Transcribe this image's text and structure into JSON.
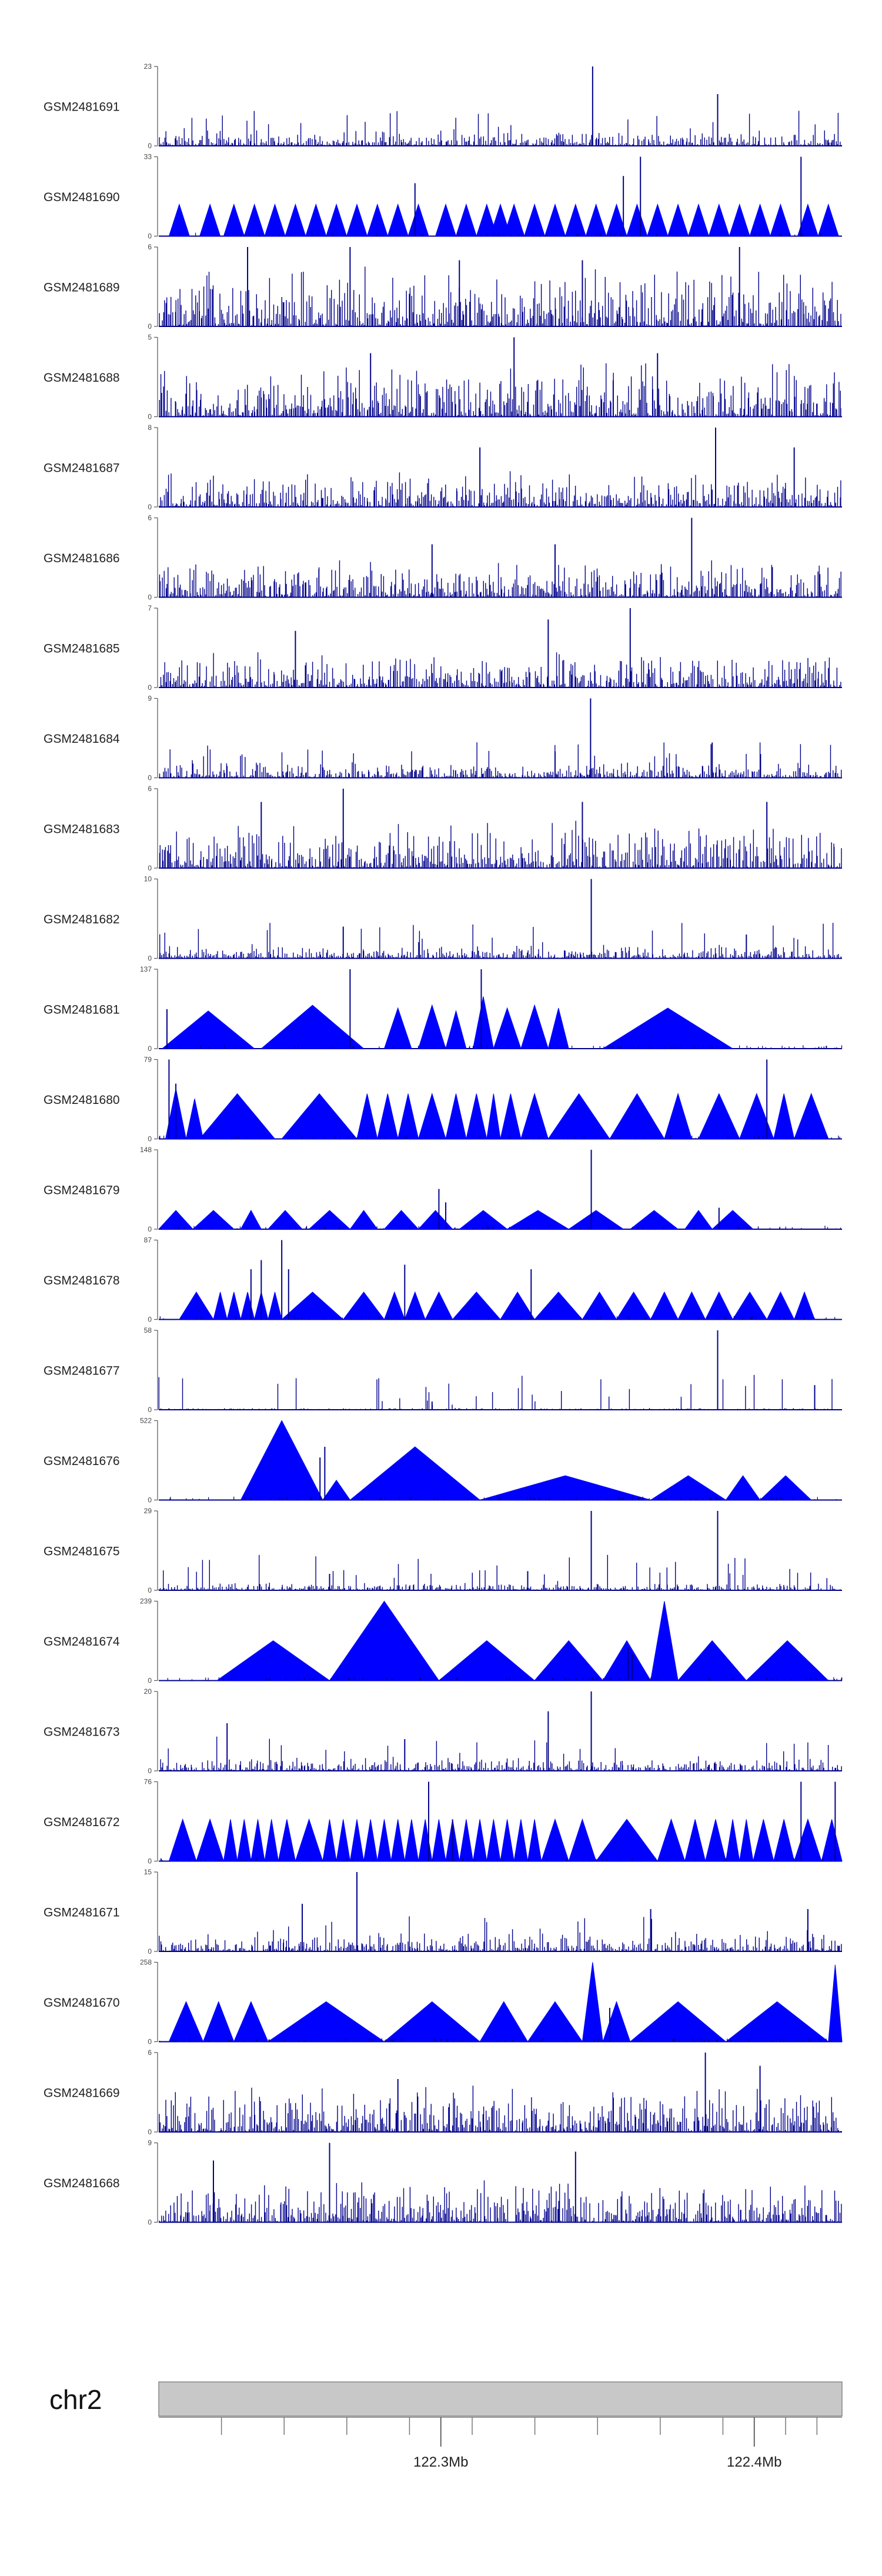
{
  "chart_data": {
    "type": "area",
    "series_color": "#0000FF",
    "outline_color": "#00008B",
    "tracks": [
      {
        "name": "GSM2481691",
        "ymax": 23,
        "style": "dense",
        "baseline": 2,
        "peaks": [
          [
            0.635,
            23
          ],
          [
            0.818,
            15
          ]
        ]
      },
      {
        "name": "GSM2481690",
        "ymax": 33,
        "style": "tri",
        "tri": [
          0.03,
          0.075,
          0.11,
          0.14,
          0.17,
          0.2,
          0.23,
          0.26,
          0.29,
          0.32,
          0.35,
          0.38,
          0.42,
          0.45,
          0.48,
          0.5,
          0.52,
          0.55,
          0.58,
          0.61,
          0.64,
          0.67,
          0.7,
          0.73,
          0.76,
          0.79,
          0.82,
          0.85,
          0.88,
          0.91,
          0.95,
          0.98
        ],
        "peaks": [
          [
            0.375,
            22
          ],
          [
            0.705,
            33
          ],
          [
            0.94,
            33
          ],
          [
            0.68,
            25
          ]
        ]
      },
      {
        "name": "GSM2481689",
        "ymax": 6,
        "style": "dense",
        "baseline": 2,
        "peaks": [
          [
            0.13,
            6
          ],
          [
            0.28,
            6
          ],
          [
            0.44,
            5
          ],
          [
            0.62,
            5
          ],
          [
            0.85,
            6
          ]
        ]
      },
      {
        "name": "GSM2481688",
        "ymax": 5,
        "style": "dense",
        "baseline": 1.5,
        "peaks": [
          [
            0.52,
            5
          ],
          [
            0.31,
            4
          ],
          [
            0.73,
            4
          ]
        ]
      },
      {
        "name": "GSM2481687",
        "ymax": 8,
        "style": "dense",
        "baseline": 1.5,
        "peaks": [
          [
            0.815,
            8
          ],
          [
            0.47,
            6
          ],
          [
            0.93,
            6
          ]
        ]
      },
      {
        "name": "GSM2481686",
        "ymax": 6,
        "style": "dense",
        "baseline": 1.2,
        "peaks": [
          [
            0.78,
            6
          ],
          [
            0.4,
            4
          ],
          [
            0.58,
            4
          ]
        ]
      },
      {
        "name": "GSM2481685",
        "ymax": 7,
        "style": "dense",
        "baseline": 1.3,
        "peaks": [
          [
            0.69,
            7
          ],
          [
            0.57,
            6
          ],
          [
            0.2,
            5
          ]
        ]
      },
      {
        "name": "GSM2481684",
        "ymax": 9,
        "style": "dense",
        "baseline": 0.8,
        "peaks": [
          [
            0.632,
            9
          ],
          [
            0.81,
            4
          ],
          [
            0.58,
            3
          ]
        ]
      },
      {
        "name": "GSM2481683",
        "ymax": 6,
        "style": "dense",
        "baseline": 1.5,
        "peaks": [
          [
            0.27,
            6
          ],
          [
            0.62,
            5
          ],
          [
            0.15,
            5
          ],
          [
            0.89,
            5
          ]
        ]
      },
      {
        "name": "GSM2481682",
        "ymax": 10,
        "style": "dense",
        "baseline": 0.7,
        "peaks": [
          [
            0.633,
            10
          ],
          [
            0.27,
            4
          ],
          [
            0.86,
            3
          ]
        ]
      },
      {
        "name": "GSM2481681",
        "ymax": 137,
        "style": "tri",
        "tri": [
          [
            0.005,
            0.14,
            65
          ],
          [
            0.15,
            0.3,
            75
          ],
          [
            0.33,
            0.37,
            70
          ],
          [
            0.38,
            0.42,
            75
          ],
          [
            0.42,
            0.45,
            65
          ],
          [
            0.46,
            0.49,
            90
          ],
          [
            0.49,
            0.53,
            70
          ],
          [
            0.53,
            0.57,
            75
          ],
          [
            0.57,
            0.6,
            70
          ],
          [
            0.65,
            0.84,
            70
          ]
        ],
        "peaks": [
          [
            0.28,
            137
          ],
          [
            0.472,
            137
          ],
          [
            0.012,
            68
          ]
        ]
      },
      {
        "name": "GSM2481680",
        "ymax": 79,
        "style": "tri",
        "tri": [
          [
            0.01,
            0.04,
            50
          ],
          [
            0.04,
            0.065,
            40
          ],
          [
            0.06,
            0.17,
            45
          ],
          [
            0.18,
            0.29,
            45
          ],
          [
            0.29,
            0.32,
            45
          ],
          [
            0.32,
            0.35,
            45
          ],
          [
            0.35,
            0.38,
            45
          ],
          [
            0.38,
            0.42,
            45
          ],
          [
            0.42,
            0.45,
            45
          ],
          [
            0.45,
            0.48,
            45
          ],
          [
            0.48,
            0.5,
            45
          ],
          [
            0.5,
            0.53,
            45
          ],
          [
            0.53,
            0.57,
            45
          ],
          [
            0.57,
            0.66,
            45
          ],
          [
            0.66,
            0.74,
            45
          ],
          [
            0.74,
            0.78,
            45
          ],
          [
            0.79,
            0.85,
            45
          ],
          [
            0.85,
            0.9,
            45
          ],
          [
            0.9,
            0.93,
            45
          ],
          [
            0.93,
            0.98,
            45
          ]
        ],
        "peaks": [
          [
            0.015,
            79
          ],
          [
            0.89,
            79
          ],
          [
            0.025,
            55
          ]
        ]
      },
      {
        "name": "GSM2481679",
        "ymax": 148,
        "style": "tri",
        "tri": [
          [
            0.0,
            0.05,
            35
          ],
          [
            0.05,
            0.11,
            35
          ],
          [
            0.12,
            0.15,
            35
          ],
          [
            0.16,
            0.21,
            35
          ],
          [
            0.22,
            0.28,
            35
          ],
          [
            0.28,
            0.32,
            35
          ],
          [
            0.33,
            0.38,
            35
          ],
          [
            0.38,
            0.43,
            35
          ],
          [
            0.44,
            0.51,
            35
          ],
          [
            0.51,
            0.6,
            35
          ],
          [
            0.6,
            0.68,
            35
          ],
          [
            0.69,
            0.76,
            35
          ],
          [
            0.77,
            0.81,
            35
          ],
          [
            0.81,
            0.87,
            35
          ]
        ],
        "peaks": [
          [
            0.633,
            148
          ],
          [
            0.41,
            75
          ],
          [
            0.42,
            50
          ],
          [
            0.82,
            40
          ]
        ]
      },
      {
        "name": "GSM2481678",
        "ymax": 87,
        "style": "tri",
        "tri": [
          [
            0.03,
            0.08,
            30
          ],
          [
            0.08,
            0.1,
            30
          ],
          [
            0.1,
            0.12,
            30
          ],
          [
            0.12,
            0.14,
            30
          ],
          [
            0.14,
            0.16,
            30
          ],
          [
            0.16,
            0.18,
            30
          ],
          [
            0.18,
            0.27,
            30
          ],
          [
            0.27,
            0.33,
            30
          ],
          [
            0.33,
            0.36,
            30
          ],
          [
            0.36,
            0.39,
            30
          ],
          [
            0.39,
            0.43,
            30
          ],
          [
            0.43,
            0.5,
            30
          ],
          [
            0.5,
            0.55,
            30
          ],
          [
            0.55,
            0.62,
            30
          ],
          [
            0.62,
            0.67,
            30
          ],
          [
            0.67,
            0.72,
            30
          ],
          [
            0.72,
            0.76,
            30
          ],
          [
            0.76,
            0.8,
            30
          ],
          [
            0.8,
            0.84,
            30
          ],
          [
            0.84,
            0.89,
            30
          ],
          [
            0.89,
            0.93,
            30
          ],
          [
            0.93,
            0.96,
            30
          ]
        ],
        "peaks": [
          [
            0.18,
            87
          ],
          [
            0.15,
            65
          ],
          [
            0.135,
            55
          ],
          [
            0.36,
            60
          ],
          [
            0.545,
            55
          ],
          [
            0.19,
            55
          ]
        ]
      },
      {
        "name": "GSM2481677",
        "ymax": 58,
        "style": "dense",
        "baseline": 0.6,
        "peaks": [
          [
            0.818,
            58
          ],
          [
            0.96,
            18
          ],
          [
            0.4,
            6
          ]
        ]
      },
      {
        "name": "GSM2481676",
        "ymax": 522,
        "style": "tri",
        "tri": [
          [
            0.12,
            0.24,
            522
          ],
          [
            0.24,
            0.28,
            130
          ],
          [
            0.28,
            0.47,
            350
          ],
          [
            0.47,
            0.72,
            160
          ],
          [
            0.72,
            0.83,
            160
          ],
          [
            0.83,
            0.88,
            160
          ],
          [
            0.88,
            0.955,
            160
          ]
        ],
        "peaks": [
          [
            0.243,
            350
          ],
          [
            0.236,
            280
          ]
        ]
      },
      {
        "name": "GSM2481675",
        "ymax": 29,
        "style": "dense",
        "baseline": 1.2,
        "peaks": [
          [
            0.633,
            29
          ],
          [
            0.818,
            29
          ],
          [
            0.25,
            6
          ],
          [
            0.54,
            7
          ]
        ]
      },
      {
        "name": "GSM2481674",
        "ymax": 239,
        "style": "tri",
        "tri": [
          [
            0.085,
            0.25,
            120
          ],
          [
            0.25,
            0.41,
            239
          ],
          [
            0.41,
            0.55,
            120
          ],
          [
            0.55,
            0.65,
            120
          ],
          [
            0.65,
            0.72,
            120
          ],
          [
            0.72,
            0.76,
            239
          ],
          [
            0.76,
            0.86,
            120
          ],
          [
            0.86,
            0.98,
            120
          ]
        ],
        "peaks": [
          [
            0.687,
            100
          ],
          [
            0.693,
            80
          ]
        ]
      },
      {
        "name": "GSM2481673",
        "ymax": 20,
        "style": "dense",
        "baseline": 1.5,
        "peaks": [
          [
            0.633,
            20
          ],
          [
            0.57,
            15
          ],
          [
            0.1,
            12
          ],
          [
            0.36,
            8
          ]
        ]
      },
      {
        "name": "GSM2481672",
        "ymax": 76,
        "style": "tri",
        "tri": [
          [
            0.015,
            0.055,
            40
          ],
          [
            0.055,
            0.095,
            40
          ],
          [
            0.095,
            0.115,
            40
          ],
          [
            0.115,
            0.135,
            40
          ],
          [
            0.135,
            0.155,
            40
          ],
          [
            0.155,
            0.175,
            40
          ],
          [
            0.175,
            0.2,
            40
          ],
          [
            0.2,
            0.24,
            40
          ],
          [
            0.24,
            0.26,
            40
          ],
          [
            0.26,
            0.28,
            40
          ],
          [
            0.28,
            0.3,
            40
          ],
          [
            0.3,
            0.32,
            40
          ],
          [
            0.32,
            0.34,
            40
          ],
          [
            0.34,
            0.36,
            40
          ],
          [
            0.36,
            0.38,
            40
          ],
          [
            0.38,
            0.4,
            40
          ],
          [
            0.4,
            0.42,
            40
          ],
          [
            0.42,
            0.44,
            40
          ],
          [
            0.44,
            0.46,
            40
          ],
          [
            0.46,
            0.48,
            40
          ],
          [
            0.48,
            0.5,
            40
          ],
          [
            0.5,
            0.52,
            40
          ],
          [
            0.52,
            0.54,
            40
          ],
          [
            0.54,
            0.56,
            40
          ],
          [
            0.56,
            0.6,
            40
          ],
          [
            0.6,
            0.64,
            40
          ],
          [
            0.64,
            0.73,
            40
          ],
          [
            0.73,
            0.77,
            40
          ],
          [
            0.77,
            0.8,
            40
          ],
          [
            0.8,
            0.83,
            40
          ],
          [
            0.83,
            0.85,
            40
          ],
          [
            0.85,
            0.87,
            40
          ],
          [
            0.87,
            0.9,
            40
          ],
          [
            0.9,
            0.93,
            40
          ],
          [
            0.93,
            0.97,
            40
          ],
          [
            0.97,
            1.0,
            40
          ]
        ],
        "peaks": [
          [
            0.395,
            76
          ],
          [
            0.94,
            76
          ],
          [
            0.99,
            76
          ],
          [
            0.43,
            40
          ]
        ]
      },
      {
        "name": "GSM2481671",
        "ymax": 15,
        "style": "dense",
        "baseline": 1.5,
        "peaks": [
          [
            0.29,
            15
          ],
          [
            0.21,
            9
          ],
          [
            0.72,
            8
          ],
          [
            0.95,
            8
          ]
        ]
      },
      {
        "name": "GSM2481670",
        "ymax": 258,
        "style": "tri",
        "tri": [
          [
            0.015,
            0.065,
            130
          ],
          [
            0.065,
            0.11,
            130
          ],
          [
            0.11,
            0.16,
            130
          ],
          [
            0.16,
            0.33,
            130
          ],
          [
            0.33,
            0.47,
            130
          ],
          [
            0.47,
            0.54,
            130
          ],
          [
            0.54,
            0.62,
            130
          ],
          [
            0.62,
            0.65,
            258
          ],
          [
            0.65,
            0.69,
            130
          ],
          [
            0.69,
            0.83,
            130
          ],
          [
            0.83,
            0.98,
            130
          ],
          [
            0.98,
            1.0,
            250
          ]
        ],
        "peaks": [
          [
            0.66,
            110
          ]
        ]
      },
      {
        "name": "GSM2481669",
        "ymax": 6,
        "style": "dense",
        "baseline": 1.5,
        "peaks": [
          [
            0.8,
            6
          ],
          [
            0.88,
            5
          ],
          [
            0.35,
            4
          ]
        ]
      },
      {
        "name": "GSM2481668",
        "ymax": 9,
        "style": "dense",
        "baseline": 2,
        "peaks": [
          [
            0.25,
            9
          ],
          [
            0.61,
            8
          ],
          [
            0.08,
            7
          ]
        ]
      }
    ],
    "ideogram": {
      "chromosome": "chr2",
      "band_color": "#C8C8C8",
      "xlim": [
        122.21,
        122.428
      ],
      "minor_ticks": [
        122.23,
        122.25,
        122.27,
        122.29,
        122.31,
        122.33,
        122.35,
        122.37,
        122.39,
        122.41,
        122.42
      ],
      "major_ticks": [
        {
          "pos": 122.3,
          "label": "122.3Mb"
        },
        {
          "pos": 122.4,
          "label": "122.4Mb"
        }
      ]
    }
  }
}
